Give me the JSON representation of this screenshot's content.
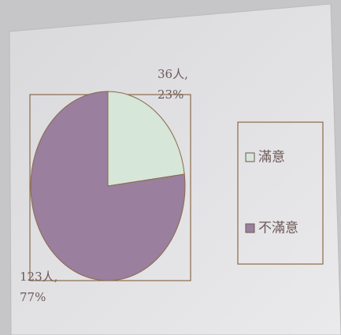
{
  "chart_data": {
    "type": "pie",
    "categories": [
      "滿意",
      "不滿意"
    ],
    "values": [
      23,
      77
    ],
    "value_labels": [
      "36人,\n23%",
      "123人,\n77%"
    ],
    "colors": [
      "#d6e6d8",
      "#9a7f9e"
    ],
    "legend": "right"
  }
}
